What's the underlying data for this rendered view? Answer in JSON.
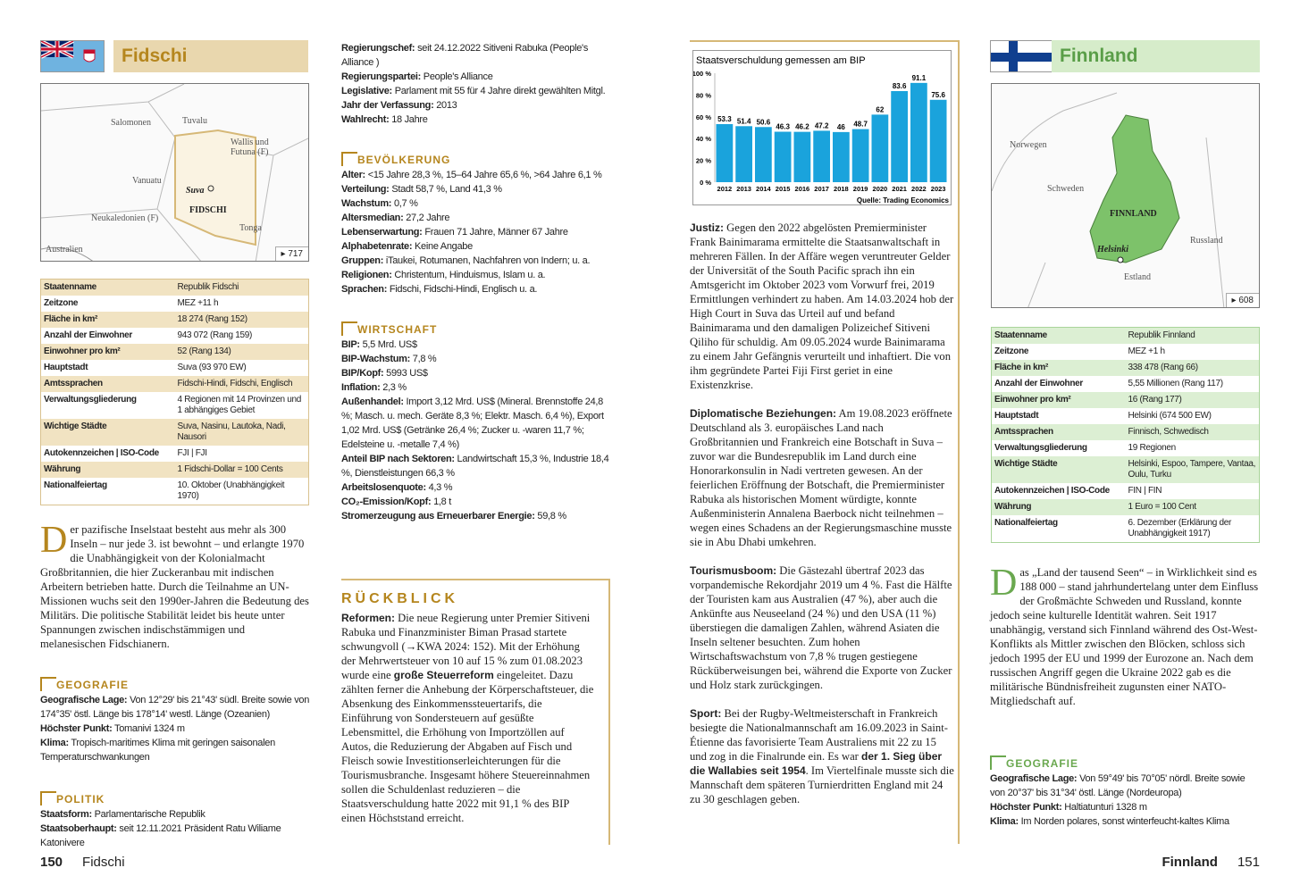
{
  "left_page": {
    "country": "Fidschi",
    "header_color": "#e9d7ae",
    "title_color": "#b5861e",
    "map": {
      "labels": [
        "Salomonen",
        "Tuvalu",
        "Wallis und Futuna (F)",
        "Vanuatu",
        "Suva",
        "FIDSCHI",
        "Neukaledonien (F)",
        "Tonga",
        "Australien"
      ],
      "page_ref": "▸ 717"
    },
    "table": [
      [
        "Staatenname",
        "Republik Fidschi"
      ],
      [
        "Zeitzone",
        "MEZ +11 h"
      ],
      [
        "Fläche in km²",
        "18 274 (Rang 152)"
      ],
      [
        "Anzahl der Einwohner",
        "943 072 (Rang 159)"
      ],
      [
        "Einwohner pro km²",
        "52 (Rang 134)"
      ],
      [
        "Hauptstadt",
        "Suva (93 970 EW)"
      ],
      [
        "Amtssprachen",
        "Fidschi-Hindi, Fidschi, Englisch"
      ],
      [
        "Verwaltungsgliederung",
        "4 Regionen mit 14 Provinzen und 1 abhängiges Gebiet"
      ],
      [
        "Wichtige Städte",
        "Suva, Nasinu, Lautoka, Nadi, Nausori"
      ],
      [
        "Autokennzeichen | ISO-Code",
        "FJI | FJI"
      ],
      [
        "Währung",
        "1 Fidschi-Dollar = 100 Cents"
      ],
      [
        "Nationalfeiertag",
        "10. Oktober (Unabhängigkeit 1970)"
      ]
    ],
    "intro_drop": "D",
    "intro": "er pazifische Inselstaat besteht aus mehr als 300 Inseln – nur jede 3. ist bewohnt – und erlangte 1970 die Unabhängigkeit von der Kolonialmacht Großbritannien, die hier Zuckeranbau mit indischen Arbeitern betrieben hatte. Durch die Teilnahme an UN-Missionen wuchs seit den 1990er-Jahren die Bedeutung des Militärs. Die politische Stabilität leidet bis heute unter Spannungen zwischen indischstämmigen und melanesischen Fidschianern.",
    "geografie": {
      "title": "GEOGRAFIE",
      "items": [
        [
          "Geografische Lage:",
          "Von 12°29' bis 21°43' südl. Breite sowie von 174°35' östl. Länge bis 178°14' westl. Länge (Ozeanien)"
        ],
        [
          "Höchster Punkt:",
          "Tomanivi 1324 m"
        ],
        [
          "Klima:",
          "Tropisch-maritimes Klima mit geringen saisonalen Temperaturschwankungen"
        ]
      ]
    },
    "politik": {
      "title": "POLITIK",
      "items": [
        [
          "Staatsform:",
          "Parlamentarische Republik"
        ],
        [
          "Staatsoberhaupt:",
          "seit 12.11.2021 Präsident Ratu Wiliame Katonivere"
        ],
        [
          "Regierungschef:",
          "seit 24.12.2022 Sitiveni Rabuka (People's Alliance )"
        ],
        [
          "Regierungspartei:",
          "People's Alliance"
        ],
        [
          "Legislative:",
          "Parlament mit 55 für 4 Jahre direkt gewählten Mitgl."
        ],
        [
          "Jahr der Verfassung:",
          "2013"
        ],
        [
          "Wahlrecht:",
          "18 Jahre"
        ]
      ]
    },
    "bevoelkerung": {
      "title": "BEVÖLKERUNG",
      "items": [
        [
          "Alter:",
          "<15 Jahre 28,3 %, 15–64 Jahre 65,6 %, >64 Jahre 6,1 %"
        ],
        [
          "Verteilung:",
          "Stadt 58,7 %, Land 41,3 %"
        ],
        [
          "Wachstum:",
          "0,7 %"
        ],
        [
          "Altersmedian:",
          "27,2 Jahre"
        ],
        [
          "Lebenserwartung:",
          "Frauen 71 Jahre, Männer 67 Jahre"
        ],
        [
          "Alphabetenrate:",
          "Keine Angabe"
        ],
        [
          "Gruppen:",
          "iTaukei, Rotumanen, Nachfahren von Indern; u. a."
        ],
        [
          "Religionen:",
          "Christentum, Hinduismus, Islam u. a."
        ],
        [
          "Sprachen:",
          "Fidschi, Fidschi-Hindi, Englisch u. a."
        ]
      ]
    },
    "wirtschaft": {
      "title": "WIRTSCHAFT",
      "items": [
        [
          "BIP:",
          "5,5 Mrd. US$"
        ],
        [
          "BIP-Wachstum:",
          "7,8 %"
        ],
        [
          "BIP/Kopf:",
          "5993 US$"
        ],
        [
          "Inflation:",
          "2,3 %"
        ],
        [
          "Außenhandel:",
          "Import 3,12 Mrd. US$ (Mineral. Brennstoffe 24,8 %; Masch. u. mech. Geräte 8,3 %; Elektr. Masch. 6,4 %), Export 1,02 Mrd. US$ (Getränke 26,4 %; Zucker u. -waren 11,7 %; Edelsteine u. -metalle 7,4 %)"
        ],
        [
          "Anteil BIP nach Sektoren:",
          "Landwirtschaft 15,3 %, Industrie 18,4 %, Dienstleistungen 66,3 %"
        ],
        [
          "Arbeitslosenquote:",
          "4,3 %"
        ],
        [
          "CO₂-Emission/Kopf:",
          "1,8 t"
        ],
        [
          "Stromerzeugung aus Erneuerbarer Energie:",
          "59,8 %"
        ]
      ]
    },
    "rueckblick": {
      "title": "RÜCKBLICK",
      "lead": "Reformen:",
      "text1": "Die neue Regierung unter Premier Sitiveni Rabuka und Finanzminister Biman Prasad startete schwungvoll (→KWA 2024: 152). Mit der Erhöhung der Mehrwertsteuer von 10 auf 15 % zum 01.08.2023 wurde eine ",
      "bold": "große Steuerreform",
      "text2": " eingeleitet. Dazu zählten ferner die Anhebung der Körperschaftsteuer, die Absenkung des Einkommenssteuertarifs, die Einführung von Sondersteuern auf gesüßte Lebensmittel, die Erhöhung von Importzöllen auf Autos, die Reduzierung der Abgaben auf Fisch und Fleisch sowie Investitionserleichterungen für die Tourismusbranche. Insgesamt höhere Steuereinnahmen sollen die Schuldenlast reduzieren – die Staatsverschuldung hatte 2022 mit 91,1 % des BIP einen Höchststand erreicht."
    },
    "page_number": "150",
    "running_head": "Fidschi"
  },
  "right_page": {
    "chart_source": "Quelle: Trading Economics",
    "justiz": {
      "lead": "Justiz:",
      "text": "Gegen den 2022 abgelösten Premierminister Frank Bainimarama ermittelte die Staatsanwaltschaft in mehreren Fällen. In der Affäre wegen veruntreuter Gelder der Universität of the South Pacific sprach ihn ein Amtsgericht im Oktober 2023 vom Vorwurf frei, 2019 Ermittlungen verhindert zu haben. Am 14.03.2024 hob der High Court in Suva das Urteil auf und befand Bainimarama und den damaligen Polizeichef Sitiveni Qiliho für schuldig. Am 09.05.2024 wurde Bainimarama zu einem Jahr Gefängnis verurteilt und inhaftiert. Die von ihm gegründete Partei Fiji First geriet in eine Existenzkrise."
    },
    "diplomatie": {
      "lead": "Diplomatische Beziehungen:",
      "text": "Am 19.08.2023 eröffnete Deutschland als 3. europäisches Land nach Großbritannien und Frankreich eine Botschaft in Suva – zuvor war die Bundesrepublik im Land durch eine Honorarkonsulin in Nadi vertreten gewesen. An der feierlichen Eröffnung der Botschaft, die Premierminister Rabuka als historischen Moment würdigte, konnte Außenministerin Annalena Baerbock nicht teilnehmen – wegen eines Schadens an der Regierungsmaschine musste sie in Abu Dhabi umkehren."
    },
    "tourismus": {
      "lead": "Tourismusboom:",
      "text": "Die Gästezahl übertraf 2023 das vorpandemische Rekordjahr 2019 um 4 %. Fast die Hälfte der Touristen kam aus Australien (47 %), aber auch die Ankünfte aus Neuseeland (24 %) und den USA (11 %) überstiegen die damaligen Zahlen, während Asiaten die Inseln seltener besuchten. Zum hohen Wirtschaftswachstum von 7,8 % trugen gestiegene Rücküberweisungen bei, während die Exporte von Zucker und Holz stark zurückgingen."
    },
    "sport": {
      "lead": "Sport:",
      "text1": "Bei der Rugby-Weltmeisterschaft in Frankreich besiegte die Nationalmannschaft am 16.09.2023 in Saint-Étienne das favorisierte Team Australiens mit 22 zu 15 und zog in die Finalrunde ein. Es war ",
      "bold": "der 1. Sieg über die Wallabies seit 1954",
      "text2": ". Im Viertelfinale musste sich die Mannschaft dem späteren Turnierdritten England mit 24 zu 30 geschlagen geben."
    },
    "country": "Finnland",
    "header_color": "#d6ecca",
    "title_color": "#5a9e48",
    "map": {
      "labels": [
        "Norwegen",
        "Schweden",
        "FINNLAND",
        "Russland",
        "Helsinki",
        "Estland"
      ],
      "page_ref": "▸ 608"
    },
    "table": [
      [
        "Staatenname",
        "Republik Finnland"
      ],
      [
        "Zeitzone",
        "MEZ +1 h"
      ],
      [
        "Fläche in km²",
        "338 478 (Rang 66)"
      ],
      [
        "Anzahl der Einwohner",
        "5,55 Millionen (Rang 117)"
      ],
      [
        "Einwohner pro km²",
        "16 (Rang 177)"
      ],
      [
        "Hauptstadt",
        "Helsinki (674 500 EW)"
      ],
      [
        "Amtssprachen",
        "Finnisch, Schwedisch"
      ],
      [
        "Verwaltungsgliederung",
        "19 Regionen"
      ],
      [
        "Wichtige Städte",
        "Helsinki, Espoo, Tampere, Vantaa, Oulu, Turku"
      ],
      [
        "Autokennzeichen | ISO-Code",
        "FIN | FIN"
      ],
      [
        "Währung",
        "1 Euro = 100 Cent"
      ],
      [
        "Nationalfeiertag",
        "6. Dezember (Erklärung der Unabhängigkeit 1917)"
      ]
    ],
    "intro_drop": "D",
    "intro": "as „Land der tausend Seen“ – in Wirklichkeit sind es 188 000 – stand jahrhundertelang unter dem Einfluss der Großmächte Schweden und Russland, konnte jedoch seine kulturelle Identität wahren. Seit 1917 unabhängig, verstand sich Finnland während des Ost-West-Konflikts als Mittler zwischen den Blöcken, schloss sich jedoch 1995 der EU und 1999 der Eurozone an. Nach dem russischen Angriff gegen die Ukraine 2022 gab es die militärische Bündnisfreiheit zugunsten einer NATO-Mitgliedschaft auf.",
    "geografie": {
      "title": "GEOGRAFIE",
      "items": [
        [
          "Geografische Lage:",
          "Von 59°49' bis 70°05' nördl. Breite sowie von 20°37' bis 31°34' östl. Länge (Nordeuropa)"
        ],
        [
          "Höchster Punkt:",
          "Haltiatunturi 1328 m"
        ],
        [
          "Klima:",
          "Im Norden polares, sonst winterfeucht-kaltes Klima"
        ]
      ]
    },
    "running_head": "Finnland",
    "page_number": "151"
  },
  "chart_data": {
    "type": "bar",
    "title": "Staatsverschuldung gemessen am BIP",
    "categories": [
      "2012",
      "2013",
      "2014",
      "2015",
      "2016",
      "2017",
      "2018",
      "2019",
      "2020",
      "2021",
      "2022",
      "2023"
    ],
    "values": [
      53.3,
      51.4,
      50.6,
      46.3,
      46.2,
      47.2,
      46,
      48.7,
      62,
      83.6,
      91.1,
      75.6
    ],
    "yticks": [
      "0 %",
      "20 %",
      "40 %",
      "60 %",
      "80 %",
      "100 %"
    ],
    "ylim": [
      0,
      100
    ],
    "color": "#1aa3dc",
    "data_labels": true,
    "source": "Quelle: Trading Economics"
  }
}
